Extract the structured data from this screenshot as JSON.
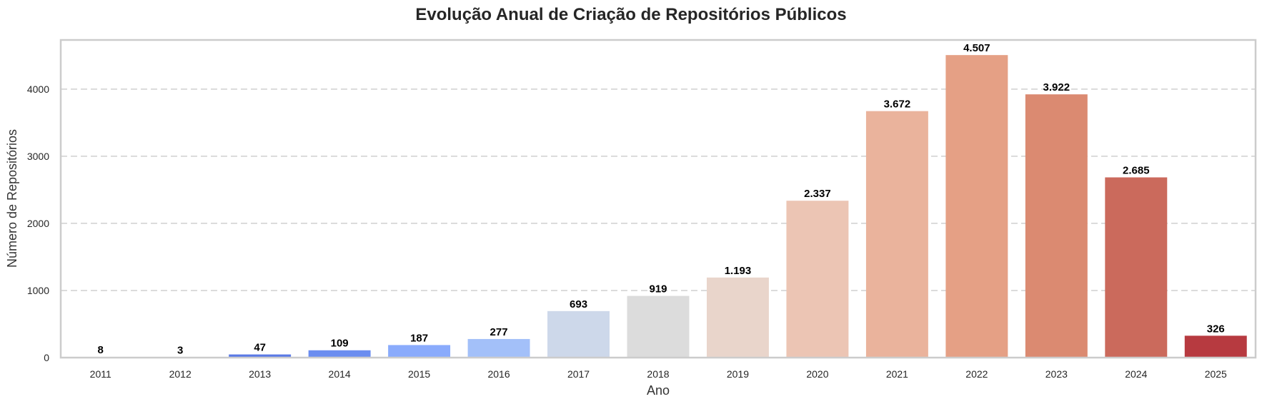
{
  "chart_data": {
    "type": "bar",
    "title": "Evolução Anual de Criação de Repositórios Públicos",
    "xlabel": "Ano",
    "ylabel": "Número de Repositórios",
    "categories": [
      "2011",
      "2012",
      "2013",
      "2014",
      "2015",
      "2016",
      "2017",
      "2018",
      "2019",
      "2020",
      "2021",
      "2022",
      "2023",
      "2024",
      "2025"
    ],
    "values": [
      8,
      3,
      47,
      109,
      187,
      277,
      693,
      919,
      1193,
      2337,
      3672,
      4507,
      3922,
      2685,
      326
    ],
    "value_labels": [
      "8",
      "3",
      "47",
      "109",
      "187",
      "277",
      "693",
      "919",
      "1.193",
      "2.337",
      "3.672",
      "4.507",
      "3.922",
      "2.685",
      "326"
    ],
    "ylim": [
      0,
      4732
    ],
    "yticks": [
      0,
      1000,
      2000,
      3000,
      4000
    ],
    "ytick_labels": [
      "0",
      "1000",
      "2000",
      "3000",
      "4000"
    ],
    "grid": "y-dashed",
    "legend": "none",
    "bar_colors": [
      "#3b4cc0",
      "#4a63d3",
      "#5b7ae5",
      "#6b8df0",
      "#8aabfc",
      "#a3c0f9",
      "#cdd8ea",
      "#dcdcdc",
      "#e9d5cb",
      "#ecc5b4",
      "#eab39c",
      "#e5a085",
      "#db8a71",
      "#cb6a5c",
      "#b73a40"
    ]
  }
}
